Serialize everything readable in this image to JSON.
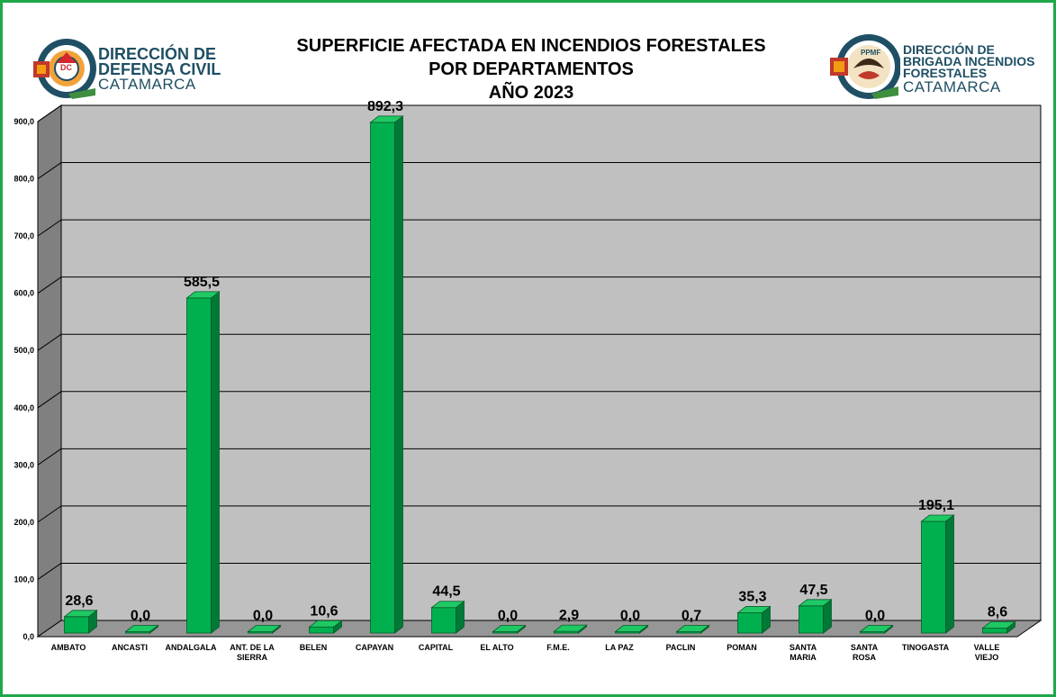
{
  "logos": {
    "left": {
      "line1": "DIRECCIÓN DE",
      "line2": "DEFENSA CIVIL",
      "line3": "CATAMARCA",
      "badge": "DC",
      "color": "#1f4f64"
    },
    "right": {
      "line1": "DIRECCIÓN DE",
      "line2": "BRIGADA INCENDIOS",
      "line3": "FORESTALES",
      "line4": "CATAMARCA",
      "badge": "PPMF",
      "color": "#1f4f64"
    }
  },
  "chart_data": {
    "type": "bar",
    "title": [
      "SUPERFICIE AFECTADA EN INCENDIOS FORESTALES",
      "POR DEPARTAMENTOS",
      "AÑO 2023"
    ],
    "categories": [
      "AMBATO",
      "ANCASTI",
      "ANDALGALA",
      "ANT. DE LA SIERRA",
      "BELEN",
      "CAPAYAN",
      "CAPITAL",
      "EL ALTO",
      "F.M.E.",
      "LA PAZ",
      "PACLIN",
      "POMAN",
      "SANTA MARIA",
      "SANTA ROSA",
      "TINOGASTA",
      "VALLE VIEJO"
    ],
    "category_lines": [
      [
        "AMBATO"
      ],
      [
        "ANCASTI"
      ],
      [
        "ANDALGALA"
      ],
      [
        "ANT. DE LA",
        "SIERRA"
      ],
      [
        "BELEN"
      ],
      [
        "CAPAYAN"
      ],
      [
        "CAPITAL"
      ],
      [
        "EL ALTO"
      ],
      [
        "F.M.E."
      ],
      [
        "LA PAZ"
      ],
      [
        "PACLIN"
      ],
      [
        "POMAN"
      ],
      [
        "SANTA",
        "MARIA"
      ],
      [
        "SANTA",
        "ROSA"
      ],
      [
        "TINOGASTA"
      ],
      [
        "VALLE",
        "VIEJO"
      ]
    ],
    "values": [
      28.6,
      0.0,
      585.5,
      0.0,
      10.6,
      892.3,
      44.5,
      0.0,
      2.9,
      0.0,
      0.7,
      35.3,
      47.5,
      0.0,
      195.1,
      8.6
    ],
    "value_labels": [
      "28,6",
      "0,0",
      "585,5",
      "0,0",
      "10,6",
      "892,3",
      "44,5",
      "0,0",
      "2,9",
      "0,0",
      "0,7",
      "35,3",
      "47,5",
      "0,0",
      "195,1",
      "8,6"
    ],
    "ylim": [
      0,
      900
    ],
    "yticks": [
      "0,0",
      "100,0",
      "200,0",
      "300,0",
      "400,0",
      "500,0",
      "600,0",
      "700,0",
      "800,0",
      "900,0"
    ],
    "ytick_values": [
      0,
      100,
      200,
      300,
      400,
      500,
      600,
      700,
      800,
      900
    ],
    "grid": true,
    "style": "3d",
    "colors": {
      "bar_front": "#00b04f",
      "bar_side": "#007a36",
      "bar_top": "#1ec964",
      "wall": "#c0c0c0",
      "side_wall": "#808080",
      "floor": "#969696",
      "gridline": "#000000"
    }
  }
}
